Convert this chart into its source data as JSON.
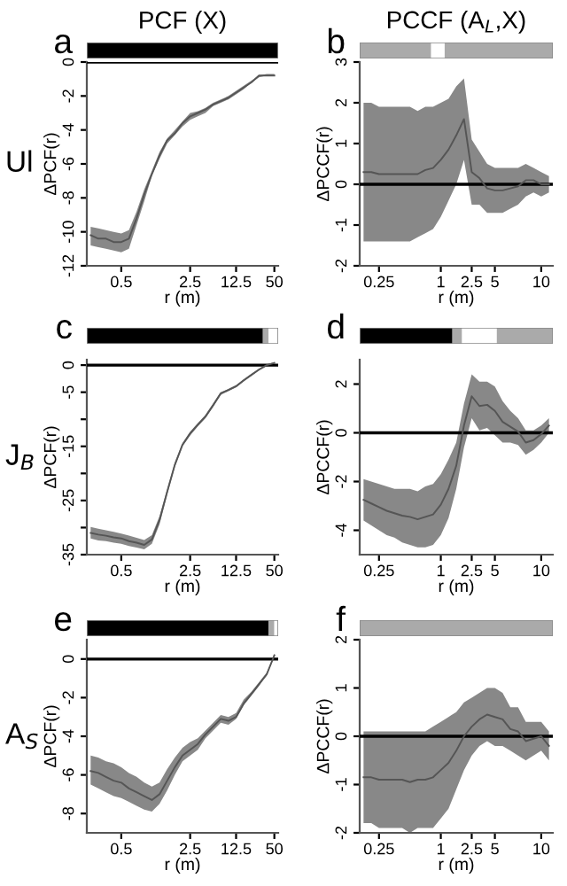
{
  "chart_data": [
    {
      "type": "line",
      "title": "a",
      "subtitle": "PCF (X)",
      "annotations": [
        "Ul"
      ],
      "xlabel": "r (m)",
      "ylabel": "ΔPCF(r)",
      "line_style": "solid",
      "grid": false,
      "categories": [
        null,
        null,
        null,
        null,
        "0.5",
        null,
        null,
        null,
        null,
        null,
        null,
        null,
        null,
        "2.5",
        null,
        null,
        null,
        null,
        null,
        "12.5",
        null,
        null,
        null,
        null,
        "50"
      ],
      "ylim": [
        -12,
        0
      ],
      "yticks": [
        -12,
        -10,
        -8,
        -6,
        -4,
        -2,
        0
      ],
      "ref_lines": [
        {
          "axis": "y",
          "value": 0,
          "color": "#000000"
        }
      ],
      "series": [
        {
          "color": "#555555",
          "values": [
            -10.2,
            -10.4,
            -10.4,
            -10.6,
            -10.6,
            -10.4,
            -9.2,
            -7.8,
            -6.6,
            -5.5,
            -4.6,
            -4.2,
            -3.6,
            -3.2,
            -3.0,
            -2.8,
            -2.5,
            -2.3,
            -2.1,
            -1.8,
            -1.5,
            -1.2,
            -0.8,
            -0.8,
            -0.8
          ],
          "upper": [
            -9.7,
            -9.8,
            -9.9,
            -10.0,
            -10.1,
            -9.9,
            -8.8,
            -7.5,
            -6.4,
            -5.3,
            -4.5,
            -4.0,
            -3.5,
            -3.0,
            -2.9,
            -2.7,
            -2.4,
            -2.2,
            -2.0,
            -1.7,
            -1.4,
            -1.1,
            -0.8,
            -0.7,
            -0.7
          ],
          "lower": [
            -10.8,
            -10.9,
            -11.0,
            -11.1,
            -11.2,
            -11.0,
            -9.6,
            -8.2,
            -6.7,
            -5.7,
            -4.8,
            -4.3,
            -3.8,
            -3.4,
            -3.2,
            -3.0,
            -2.6,
            -2.4,
            -2.2,
            -1.9,
            -1.6,
            -1.2,
            -0.9,
            -0.8,
            -0.8
          ]
        }
      ]
    },
    {
      "type": "line",
      "title": "b",
      "subtitle": "PCCF (A$_{L}$,X)",
      "xlabel": "r (m)",
      "ylabel": "ΔPCCF(r)",
      "line_style": "solid",
      "grid": false,
      "categories": [
        null,
        null,
        "0.25",
        null,
        null,
        null,
        null,
        null,
        null,
        null,
        "1",
        null,
        null,
        null,
        "2.5",
        null,
        null,
        "5",
        null,
        null,
        null,
        null,
        null,
        "10",
        null
      ],
      "ylim": [
        -2,
        3
      ],
      "yticks": [
        -2,
        -1,
        0,
        1,
        2,
        3
      ],
      "ref_lines": [
        {
          "axis": "y",
          "value": 0,
          "color": "#000000"
        }
      ],
      "series": [
        {
          "color": "#555555",
          "values": [
            0.3,
            0.3,
            0.25,
            0.25,
            0.25,
            0.25,
            0.25,
            0.25,
            0.35,
            0.4,
            0.6,
            0.85,
            1.2,
            1.6,
            0.3,
            0.15,
            -0.1,
            -0.15,
            -0.15,
            -0.1,
            -0.05,
            0.1,
            0.1,
            0.0,
            0.0
          ],
          "upper": [
            2.0,
            2.0,
            1.9,
            1.9,
            1.9,
            1.9,
            1.9,
            1.8,
            1.9,
            1.9,
            2.0,
            2.1,
            2.4,
            2.6,
            1.1,
            0.8,
            0.5,
            0.4,
            0.4,
            0.4,
            0.4,
            0.5,
            0.4,
            0.3,
            0.2
          ],
          "lower": [
            -1.4,
            -1.4,
            -1.4,
            -1.4,
            -1.4,
            -1.4,
            -1.4,
            -1.3,
            -1.2,
            -1.1,
            -0.8,
            -0.4,
            0.0,
            0.6,
            -0.5,
            -0.5,
            -0.7,
            -0.7,
            -0.7,
            -0.6,
            -0.5,
            -0.3,
            -0.2,
            -0.3,
            -0.2
          ]
        }
      ]
    },
    {
      "type": "line",
      "title": "c",
      "annotations": [
        "J$_{B}$"
      ],
      "xlabel": "r (m)",
      "ylabel": "ΔPCF(r)",
      "line_style": "solid",
      "grid": false,
      "categories": [
        null,
        null,
        null,
        null,
        "0.5",
        null,
        null,
        null,
        null,
        null,
        null,
        null,
        null,
        "2.5",
        null,
        null,
        null,
        null,
        null,
        "12.5",
        null,
        null,
        null,
        null,
        "50"
      ],
      "ylim": [
        -35,
        1
      ],
      "yticks": [
        -35,
        {
          "value": -30,
          "label": null
        },
        -25,
        {
          "value": -20,
          "label": null
        },
        -15,
        {
          "value": -10,
          "label": null
        },
        -5,
        0
      ],
      "ref_lines": [
        {
          "axis": "y",
          "value": 0,
          "color": "#000000"
        }
      ],
      "series": [
        {
          "color": "#555555",
          "values": [
            -31.0,
            -31.3,
            -31.5,
            -31.8,
            -32.0,
            -32.5,
            -32.8,
            -33.2,
            -32.2,
            -28.6,
            -23.4,
            -18.4,
            -14.7,
            -12.6,
            -11.0,
            -9.5,
            -7.4,
            -5.2,
            -4.6,
            -3.9,
            -2.8,
            -1.8,
            -0.8,
            0.0,
            0.4
          ],
          "upper": [
            -29.9,
            -30.2,
            -30.5,
            -30.8,
            -31.1,
            -31.5,
            -31.9,
            -32.3,
            -31.4,
            -27.9,
            -22.9,
            -18.0,
            -14.4,
            -12.3,
            -10.7,
            -9.2,
            -7.1,
            -5.0,
            -4.4,
            -3.7,
            -2.6,
            -1.6,
            -0.7,
            0.1,
            0.6
          ],
          "lower": [
            -32.0,
            -32.4,
            -32.5,
            -32.8,
            -33.0,
            -33.4,
            -33.7,
            -34.0,
            -33.0,
            -29.4,
            -23.9,
            -18.8,
            -15.0,
            -13.0,
            -11.3,
            -9.8,
            -7.7,
            -5.5,
            -4.8,
            -4.1,
            -3.0,
            -2.0,
            -1.0,
            -0.2,
            0.3
          ]
        }
      ]
    },
    {
      "type": "line",
      "title": "d",
      "xlabel": "r (m)",
      "ylabel": "ΔPCCF(r)",
      "line_style": "solid",
      "grid": false,
      "categories": [
        null,
        null,
        "0.25",
        null,
        null,
        null,
        null,
        null,
        null,
        null,
        "1",
        null,
        null,
        null,
        "2.5",
        null,
        null,
        "5",
        null,
        null,
        null,
        null,
        null,
        "10",
        null
      ],
      "ylim": [
        -5,
        3
      ],
      "yticks": [
        -4,
        -2,
        0,
        2
      ],
      "ref_lines": [
        {
          "axis": "y",
          "value": 0,
          "color": "#000000"
        }
      ],
      "series": [
        {
          "color": "#555555",
          "values": [
            -2.75,
            -2.9,
            -3.05,
            -3.2,
            -3.3,
            -3.4,
            -3.45,
            -3.55,
            -3.45,
            -3.35,
            -2.95,
            -2.3,
            -1.35,
            0.3,
            1.5,
            1.1,
            1.15,
            0.9,
            0.45,
            0.25,
            0.05,
            -0.4,
            -0.3,
            -0.05,
            0.3
          ],
          "upper": [
            -1.9,
            -2.0,
            -2.1,
            -2.2,
            -2.3,
            -2.3,
            -2.3,
            -2.4,
            -2.2,
            -2.1,
            -1.7,
            -1.1,
            -0.4,
            1.2,
            2.4,
            2.1,
            2.1,
            1.9,
            1.3,
            0.9,
            0.6,
            0.1,
            0.1,
            0.3,
            0.6
          ],
          "lower": [
            -3.6,
            -3.8,
            -4.0,
            -4.2,
            -4.3,
            -4.5,
            -4.6,
            -4.7,
            -4.7,
            -4.6,
            -4.2,
            -3.5,
            -2.3,
            -0.6,
            0.6,
            0.1,
            0.2,
            -0.1,
            -0.4,
            -0.4,
            -0.5,
            -0.9,
            -0.7,
            -0.4,
            0.0
          ]
        }
      ]
    },
    {
      "type": "line",
      "title": "e",
      "annotations": [
        "A$_{S}$"
      ],
      "xlabel": "r (m)",
      "ylabel": "ΔPCF(r)",
      "line_style": "solid",
      "grid": false,
      "categories": [
        null,
        null,
        null,
        null,
        "0.5",
        null,
        null,
        null,
        null,
        null,
        null,
        null,
        null,
        "2.5",
        null,
        null,
        null,
        null,
        null,
        "12.5",
        null,
        null,
        null,
        null,
        "50"
      ],
      "ylim": [
        -9,
        1
      ],
      "yticks": [
        -8,
        -6,
        -4,
        -2,
        0
      ],
      "ref_lines": [
        {
          "axis": "y",
          "value": 0,
          "color": "#000000"
        }
      ],
      "series": [
        {
          "color": "#555555",
          "values": [
            -5.8,
            -5.9,
            -6.1,
            -6.3,
            -6.4,
            -6.7,
            -6.9,
            -7.1,
            -7.3,
            -7.0,
            -6.3,
            -5.6,
            -5.0,
            -4.7,
            -4.4,
            -3.9,
            -3.5,
            -3.1,
            -3.2,
            -3.0,
            -2.3,
            -1.8,
            -1.3,
            -0.8,
            0.2
          ],
          "upper": [
            -5.0,
            -5.1,
            -5.3,
            -5.4,
            -5.6,
            -5.9,
            -6.1,
            -6.4,
            -6.6,
            -6.4,
            -5.7,
            -5.1,
            -4.6,
            -4.3,
            -4.1,
            -3.7,
            -3.3,
            -2.9,
            -3.0,
            -2.8,
            -2.1,
            -1.7,
            -1.2,
            -0.7,
            0.2
          ],
          "lower": [
            -6.5,
            -6.7,
            -6.9,
            -7.1,
            -7.2,
            -7.4,
            -7.6,
            -7.8,
            -7.9,
            -7.5,
            -6.8,
            -6.0,
            -5.3,
            -5.0,
            -4.7,
            -4.1,
            -3.7,
            -3.3,
            -3.4,
            -3.1,
            -2.4,
            -1.9,
            -1.4,
            -0.8,
            0.1
          ]
        }
      ]
    },
    {
      "type": "line",
      "title": "f",
      "xlabel": "r (m)",
      "ylabel": "ΔPCCF(r)",
      "line_style": "solid",
      "grid": false,
      "categories": [
        null,
        null,
        "0.25",
        null,
        null,
        null,
        null,
        null,
        null,
        null,
        "1",
        null,
        null,
        null,
        "2.5",
        null,
        null,
        "5",
        null,
        null,
        null,
        null,
        null,
        "10",
        null
      ],
      "ylim": [
        -2,
        2
      ],
      "yticks": [
        -2,
        -1,
        0,
        1,
        2
      ],
      "ref_lines": [
        {
          "axis": "y",
          "value": 0,
          "color": "#000000"
        }
      ],
      "series": [
        {
          "color": "#555555",
          "values": [
            -0.85,
            -0.85,
            -0.9,
            -0.9,
            -0.9,
            -0.9,
            -0.95,
            -0.9,
            -0.9,
            -0.85,
            -0.7,
            -0.55,
            -0.3,
            0.0,
            0.2,
            0.35,
            0.45,
            0.4,
            0.35,
            0.15,
            0.1,
            -0.1,
            -0.05,
            0.0,
            -0.2
          ],
          "upper": [
            0.1,
            0.1,
            0.1,
            0.1,
            0.1,
            0.1,
            0.1,
            0.1,
            0.1,
            0.2,
            0.3,
            0.4,
            0.5,
            0.7,
            0.8,
            0.9,
            1.0,
            1.0,
            0.9,
            0.6,
            0.6,
            0.3,
            0.3,
            0.3,
            0.1
          ],
          "lower": [
            -1.8,
            -1.8,
            -1.9,
            -1.9,
            -1.9,
            -1.9,
            -2.0,
            -1.9,
            -1.9,
            -1.9,
            -1.7,
            -1.5,
            -1.1,
            -0.7,
            -0.4,
            -0.2,
            -0.1,
            -0.2,
            -0.2,
            -0.3,
            -0.4,
            -0.5,
            -0.4,
            -0.3,
            -0.5
          ]
        }
      ]
    }
  ]
}
